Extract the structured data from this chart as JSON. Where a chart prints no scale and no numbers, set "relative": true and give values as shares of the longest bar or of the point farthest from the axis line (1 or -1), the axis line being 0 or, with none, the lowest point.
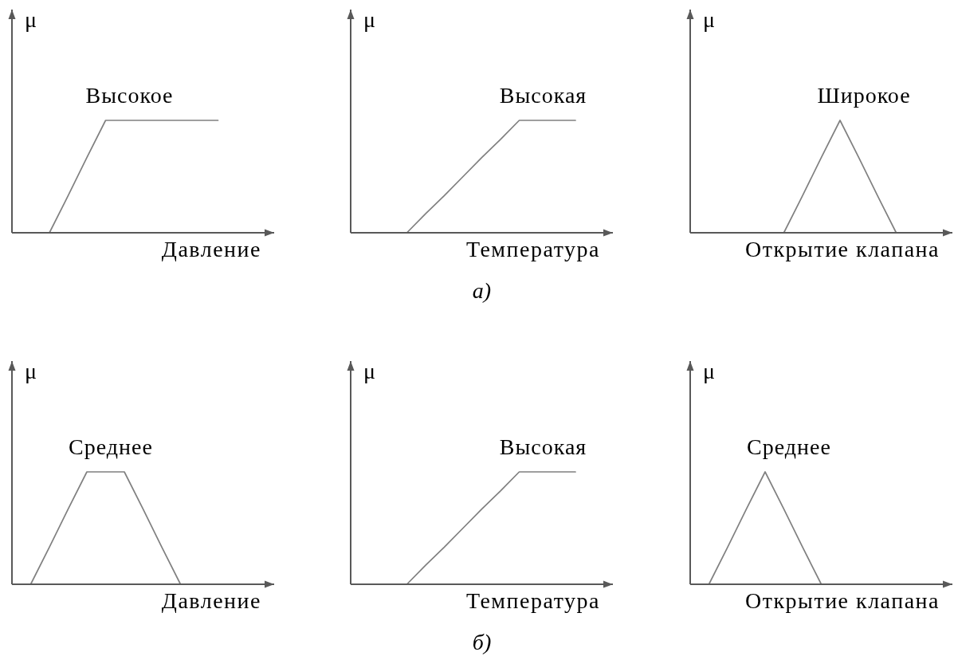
{
  "chart_data": [
    {
      "type": "line",
      "ylabel": "μ",
      "xlabel": "Давление",
      "relative": true,
      "categories": [
        null,
        null,
        null,
        null,
        null,
        null,
        null,
        null,
        null,
        null,
        null,
        null,
        null,
        null,
        null
      ],
      "series": [
        {
          "name": "Высокое",
          "color": "#808080",
          "values": [
            null,
            null,
            0,
            0.33,
            0.67,
            1,
            1,
            1,
            1,
            1,
            1,
            1,
            null,
            null,
            null
          ]
        }
      ]
    },
    {
      "type": "line",
      "ylabel": "μ",
      "xlabel": "Температура",
      "relative": true,
      "annotations": [
        "а)"
      ],
      "categories": [
        null,
        null,
        null,
        null,
        null,
        null,
        null,
        null,
        null,
        null,
        null,
        null,
        null,
        null,
        null
      ],
      "series": [
        {
          "name": "Высокая",
          "color": "#808080",
          "values": [
            null,
            null,
            null,
            0,
            0.17,
            0.33,
            0.5,
            0.67,
            0.83,
            1,
            1,
            1,
            1,
            null,
            null
          ]
        }
      ]
    },
    {
      "type": "line",
      "ylabel": "μ",
      "xlabel": "Открытие клапана",
      "relative": true,
      "categories": [
        null,
        null,
        null,
        null,
        null,
        null,
        null,
        null,
        null,
        null,
        null,
        null,
        null,
        null,
        null
      ],
      "series": [
        {
          "name": "Широкое",
          "color": "#808080",
          "values": [
            null,
            null,
            null,
            null,
            null,
            0,
            0.33,
            0.67,
            1,
            0.67,
            0.33,
            0,
            null,
            null,
            null
          ]
        }
      ]
    },
    {
      "type": "line",
      "ylabel": "μ",
      "xlabel": "Давление",
      "relative": true,
      "categories": [
        null,
        null,
        null,
        null,
        null,
        null,
        null,
        null,
        null,
        null,
        null,
        null,
        null,
        null,
        null
      ],
      "series": [
        {
          "name": "Среднее",
          "color": "#808080",
          "values": [
            null,
            0,
            0.33,
            0.67,
            1,
            1,
            1,
            0.67,
            0.33,
            0,
            null,
            null,
            null,
            null,
            null
          ]
        }
      ]
    },
    {
      "type": "line",
      "ylabel": "μ",
      "xlabel": "Температура",
      "relative": true,
      "annotations": [
        "б)"
      ],
      "categories": [
        null,
        null,
        null,
        null,
        null,
        null,
        null,
        null,
        null,
        null,
        null,
        null,
        null,
        null,
        null
      ],
      "series": [
        {
          "name": "Высокая",
          "color": "#808080",
          "values": [
            null,
            null,
            null,
            0,
            0.17,
            0.33,
            0.5,
            0.67,
            0.83,
            1,
            1,
            1,
            1,
            null,
            null
          ]
        }
      ]
    },
    {
      "type": "line",
      "ylabel": "μ",
      "xlabel": "Открытие клапана",
      "relative": true,
      "categories": [
        null,
        null,
        null,
        null,
        null,
        null,
        null,
        null,
        null,
        null,
        null,
        null,
        null,
        null,
        null
      ],
      "series": [
        {
          "name": "Среднее",
          "color": "#808080",
          "values": [
            null,
            0,
            0.33,
            0.67,
            1,
            0.67,
            0.33,
            0,
            null,
            null,
            null,
            null,
            null,
            null,
            null
          ]
        }
      ]
    }
  ]
}
